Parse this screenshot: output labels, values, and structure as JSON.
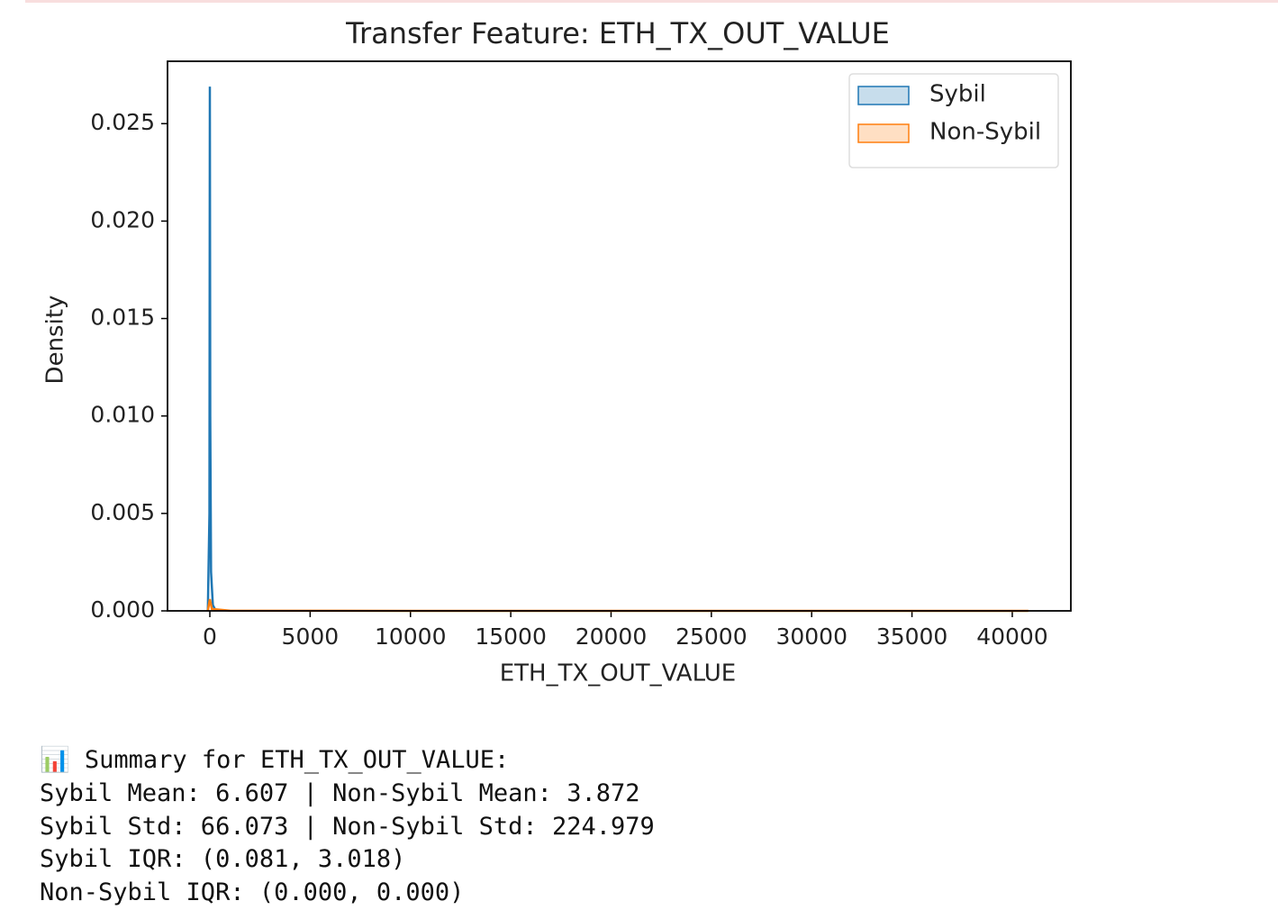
{
  "chart_data": {
    "type": "kde",
    "title": "Transfer Feature: ETH_TX_OUT_VALUE",
    "xlabel": "ETH_TX_OUT_VALUE",
    "ylabel": "Density",
    "xlim": [
      -2110,
      42920
    ],
    "ylim": [
      0,
      0.0282
    ],
    "xticks": [
      0,
      5000,
      10000,
      15000,
      20000,
      25000,
      30000,
      35000,
      40000
    ],
    "yticks": [
      {
        "value": 0,
        "label": "0.000"
      },
      0.005,
      {
        "value": 0.01,
        "label": "0.010"
      },
      0.015,
      {
        "value": 0.02,
        "label": "0.020"
      },
      0.025
    ],
    "legend": "upper right",
    "series": [
      {
        "name": "Sybil",
        "color": "#1f77b4",
        "x": [
          -100,
          -20,
          0,
          20,
          60,
          150,
          300
        ],
        "values": [
          0,
          0.005,
          0.0269,
          0.01,
          0.002,
          0.0003,
          0
        ]
      },
      {
        "name": "Non-Sybil",
        "color": "#ff7f0e",
        "x": [
          -100,
          0,
          100,
          1000,
          10000,
          40800
        ],
        "values": [
          0,
          0.0006,
          0.0001,
          1e-05,
          0,
          0
        ]
      }
    ]
  },
  "summary": {
    "lines": [
      "📊 Summary for ETH_TX_OUT_VALUE:",
      "Sybil Mean: 6.607 | Non-Sybil Mean: 3.872",
      "Sybil Std: 66.073 | Non-Sybil Std: 224.979",
      "Sybil IQR: (0.081, 3.018)",
      "Non-Sybil IQR: (0.000, 0.000)"
    ]
  }
}
